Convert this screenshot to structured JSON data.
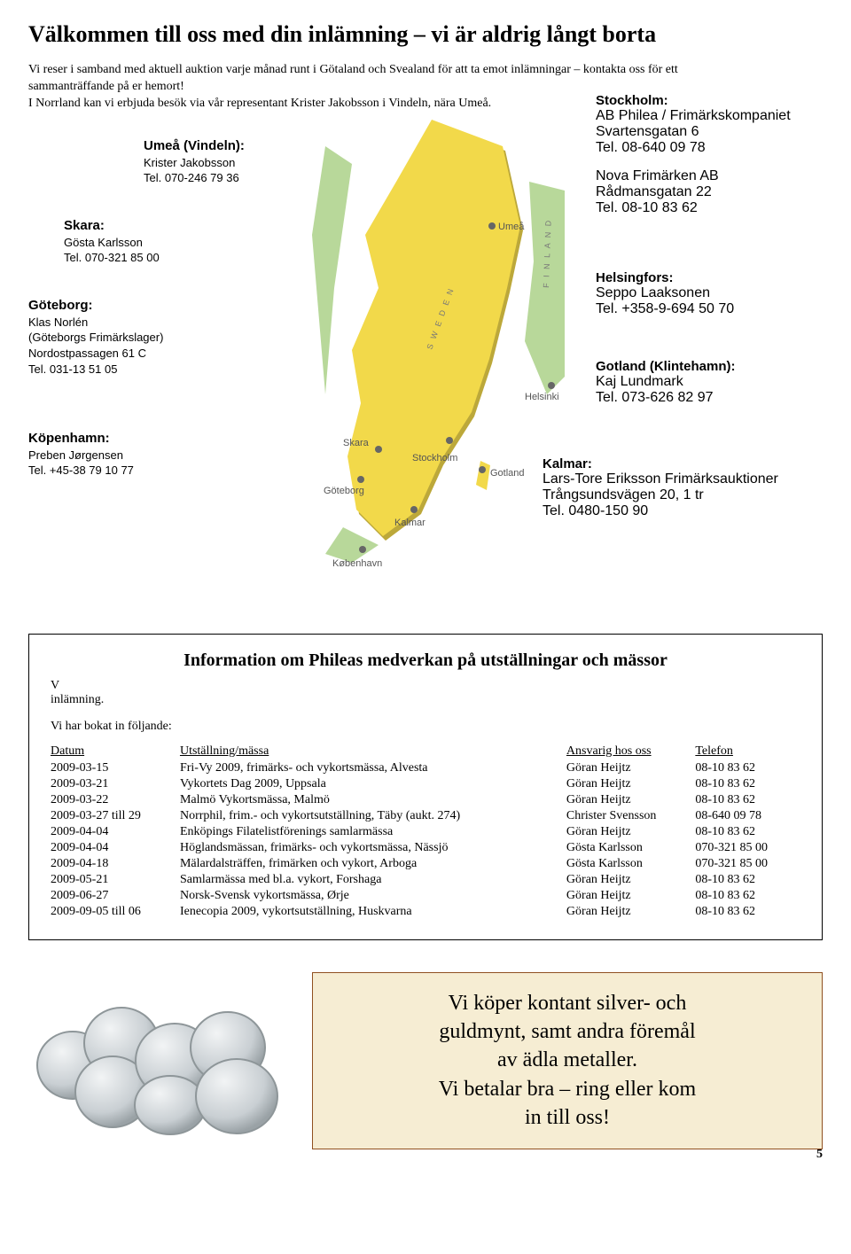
{
  "title": "Välkommen till oss med din inlämning – vi är aldrig långt borta",
  "intro": "Vi reser i samband med aktuell auktion varje månad runt i Götaland och Svealand för att ta emot inlämningar – kontakta oss för ett sammanträffande på er hemort!\nI Norrland kan vi erbjuda besök via vår representant Krister Jakobsson i Vindeln, nära Umeå.",
  "locations": {
    "umea": {
      "title": "Umeå (Vindeln):",
      "line1": "Krister Jakobsson",
      "line2": "Tel. 070-246 79 36"
    },
    "skara": {
      "title": "Skara:",
      "line1": "Gösta Karlsson",
      "line2": "Tel. 070-321 85 00"
    },
    "goteborg": {
      "title": "Göteborg:",
      "line1": "Klas Norlén",
      "line2": "(Göteborgs Frimärkslager)",
      "line3": "Nordostpassagen 61 C",
      "line4": "Tel. 031-13 51 05"
    },
    "kopenhamn": {
      "title": "Köpenhamn:",
      "line1": "Preben Jørgensen",
      "line2": "Tel. +45-38 79 10 77"
    },
    "stockholm": {
      "title": "Stockholm:",
      "a1": "AB Philea / Frimärkskompaniet",
      "a2": "Svartensgatan 6",
      "a3": "Tel. 08-640 09 78",
      "b1": "Nova Frimärken AB",
      "b2": "Rådmansgatan 22",
      "b3": "Tel. 08-10 83 62"
    },
    "helsingfors": {
      "title": "Helsingfors:",
      "line1": "Seppo Laaksonen",
      "line2": "Tel. +358-9-694 50 70"
    },
    "gotland": {
      "title": "Gotland (Klintehamn):",
      "line1": "Kaj Lundmark",
      "line2": "Tel. 073-626 82 97"
    },
    "kalmar": {
      "title": "Kalmar:",
      "line1": "Lars-Tore Eriksson Frimärksauktioner",
      "line2": "Trångsundsvägen 20, 1 tr",
      "line3": "Tel. 0480-150 90"
    }
  },
  "map_labels": {
    "umea": "Umeå",
    "skara": "Skara",
    "stockholm": "Stockholm",
    "goteborg": "Göteborg",
    "gotland": "Gotland",
    "kalmar": "Kalmar",
    "kobenhavn": "København",
    "helsinki": "Helsinki",
    "sweden": "S  W  E  D  E  N",
    "finland": "F  I  N  L  A  N  D"
  },
  "info": {
    "heading": "Information om Phileas medverkan på utställningar och mässor",
    "lead": "V\u0007\ninlämning.",
    "booked": "Vi har bokat in följande:",
    "columns": [
      "Datum",
      "Utställning/mässa",
      "Ansvarig hos oss",
      "Telefon"
    ],
    "rows": [
      [
        "2009-03-15",
        "Fri-Vy 2009, frimärks- och vykortsmässa, Alvesta",
        "Göran Heijtz",
        "08-10 83 62"
      ],
      [
        "2009-03-21",
        "Vykortets Dag 2009, Uppsala",
        "Göran Heijtz",
        "08-10 83 62"
      ],
      [
        "2009-03-22",
        "Malmö Vykortsmässa, Malmö",
        "Göran Heijtz",
        "08-10 83 62"
      ],
      [
        "2009-03-27 till 29",
        "Norrphil, frim.- och vykortsutställning, Täby (aukt. 274)",
        "Christer Svensson",
        "08-640 09 78"
      ],
      [
        "2009-04-04",
        "Enköpings Filatelistförenings samlarmässa",
        "Göran Heijtz",
        "08-10 83 62"
      ],
      [
        "2009-04-04",
        "Höglandsmässan, frimärks- och vykortsmässa, Nässjö",
        "Gösta Karlsson",
        "070-321 85 00"
      ],
      [
        "2009-04-18",
        "Mälardalsträffen, frimärken och vykort, Arboga",
        "Gösta Karlsson",
        "070-321 85 00"
      ],
      [
        "2009-05-21",
        "Samlarmässa med bl.a. vykort, Forshaga",
        "Göran Heijtz",
        "08-10 83 62"
      ],
      [
        "2009-06-27",
        "Norsk-Svensk vykortsmässa, Ørje",
        "Göran Heijtz",
        "08-10 83 62"
      ],
      [
        "2009-09-05 till 06",
        "Ienecopia 2009, vykortsutställning, Huskvarna",
        "Göran Heijtz",
        "08-10 83 62"
      ]
    ]
  },
  "buy_box": {
    "l1": "Vi köper kontant silver- och",
    "l2": "guldmynt, samt andra föremål",
    "l3": "av ädla metaller.",
    "l4": "Vi betalar bra – ring eller kom",
    "l5": "in till oss!",
    "bg": "#f6edd3",
    "border": "#905020"
  },
  "colors": {
    "map_sweden": "#f2d94a",
    "map_shadow": "#bca83a",
    "map_water": "#a9c7b3",
    "map_other": "#b8d89a",
    "coin": "#d2d7da",
    "coin_edge": "#9aa2a6"
  },
  "page_number": "5"
}
